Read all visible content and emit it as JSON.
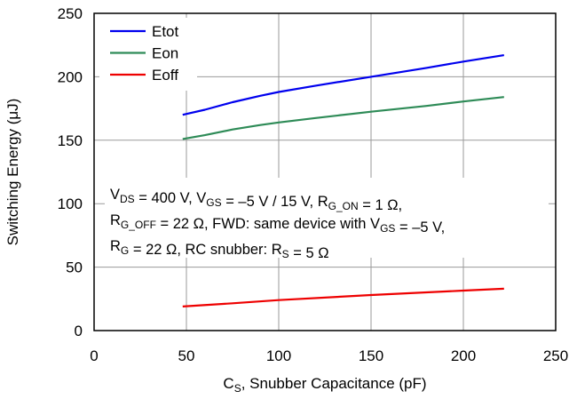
{
  "chart_data": {
    "type": "line",
    "xlabel": {
      "main": "C",
      "sub": "S",
      "rest": ", Snubber Capacitance (pF)"
    },
    "ylabel": "Switching Energy (μJ)",
    "xlim": [
      0,
      250
    ],
    "ylim": [
      0,
      250
    ],
    "xticks": [
      0,
      50,
      100,
      150,
      200,
      250
    ],
    "yticks": [
      0,
      50,
      100,
      150,
      200,
      250
    ],
    "grid": true,
    "legend_position": "top-left",
    "series": [
      {
        "name": "Etot",
        "color": "#0000ee",
        "x": [
          48,
          60,
          75,
          90,
          100,
          120,
          150,
          180,
          200,
          222
        ],
        "y": [
          170,
          174,
          180,
          185,
          188,
          193,
          200,
          207,
          212,
          217
        ]
      },
      {
        "name": "Eon",
        "color": "#2e8b57",
        "x": [
          48,
          60,
          75,
          90,
          100,
          120,
          150,
          180,
          200,
          222
        ],
        "y": [
          151,
          154,
          158.5,
          162,
          164,
          167.5,
          172.5,
          177,
          180.5,
          184
        ]
      },
      {
        "name": "Eoff",
        "color": "#ee0000",
        "x": [
          48,
          75,
          100,
          150,
          200,
          222
        ],
        "y": [
          19,
          21.5,
          24,
          28,
          31.5,
          33
        ]
      }
    ],
    "annotation": {
      "line1": [
        {
          "t": "V"
        },
        {
          "t": "DS",
          "sub": true
        },
        {
          "t": " = 400 V, V"
        },
        {
          "t": "GS",
          "sub": true
        },
        {
          "t": " = –5 V / 15 V, R"
        },
        {
          "t": "G_ON",
          "sub": true
        },
        {
          "t": " = 1 Ω,"
        }
      ],
      "line2": [
        {
          "t": "R"
        },
        {
          "t": "G_OFF",
          "sub": true
        },
        {
          "t": " = 22 Ω, FWD: same device with V"
        },
        {
          "t": "GS",
          "sub": true
        },
        {
          "t": " = –5 V,"
        }
      ],
      "line3": [
        {
          "t": "R"
        },
        {
          "t": "G",
          "sub": true
        },
        {
          "t": " = 22 Ω, RC snubber: R"
        },
        {
          "t": "S",
          "sub": true
        },
        {
          "t": " = 5 Ω"
        }
      ]
    }
  }
}
